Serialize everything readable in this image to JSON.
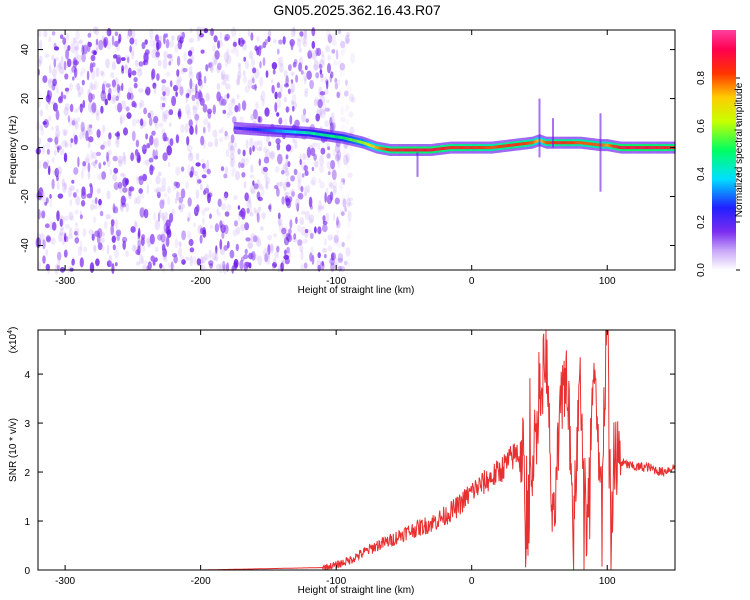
{
  "title": "GN05.2025.362.16.43.R07",
  "colors": {
    "snr_line": "#e83030",
    "spec_purple": "#7a2cf0",
    "frame": "#000000"
  },
  "chart_data": [
    {
      "type": "heatmap",
      "name": "spectrogram",
      "xlabel": "Height of straight line (km)",
      "ylabel": "Frequency (Hz)",
      "xlim": [
        -320,
        150
      ],
      "ylim": [
        -50,
        48
      ],
      "x_ticks": [
        -300,
        -200,
        -100,
        0,
        100
      ],
      "x_tick_labels": [
        "-300",
        "-200",
        "-100",
        "0",
        "100"
      ],
      "y_ticks": [
        -40,
        -20,
        0,
        20,
        40
      ],
      "y_tick_labels": [
        "-40",
        "-20",
        "0",
        "20",
        "40"
      ],
      "noise_region_x": [
        -320,
        -110
      ],
      "trace": {
        "x": [
          -175,
          -150,
          -120,
          -95,
          -80,
          -70,
          -60,
          -45,
          -30,
          -15,
          0,
          15,
          30,
          45,
          50,
          55,
          65,
          80,
          95,
          100,
          110,
          130,
          150
        ],
        "freq": [
          8,
          7,
          6,
          4,
          2,
          0,
          -1,
          -1,
          -1,
          0,
          0,
          0,
          1,
          2,
          3,
          2,
          2,
          2,
          1,
          1,
          0,
          0,
          0
        ],
        "amplitude": [
          0.2,
          0.3,
          0.45,
          0.5,
          0.6,
          0.75,
          0.85,
          0.9,
          0.9,
          0.85,
          0.85,
          0.8,
          0.85,
          0.8,
          0.7,
          0.8,
          0.85,
          0.8,
          0.8,
          0.75,
          0.9,
          0.9,
          0.85
        ]
      },
      "colorbar": {
        "label": "Normalized spectral amplitude",
        "ticks": [
          0.0,
          0.2,
          0.4,
          0.6,
          0.8
        ],
        "tick_labels": [
          "0.0",
          "0.2",
          "0.4",
          "0.6",
          "0.8"
        ],
        "range": [
          0,
          1
        ]
      }
    },
    {
      "type": "line",
      "name": "snr",
      "xlabel": "Height of straight line (km)",
      "ylabel": "SNR (10 * v/v)",
      "exponent_label": "(x10",
      "exponent_power": "4",
      "exponent_close": ")",
      "xlim": [
        -320,
        150
      ],
      "ylim": [
        0,
        4.9
      ],
      "x_ticks": [
        -300,
        -200,
        -100,
        0,
        100
      ],
      "x_tick_labels": [
        "-300",
        "-200",
        "-100",
        "0",
        "100"
      ],
      "y_ticks": [
        0,
        1,
        2,
        3,
        4
      ],
      "y_tick_labels": [
        "0",
        "1",
        "2",
        "3",
        "4"
      ],
      "series": [
        {
          "name": "SNR",
          "x": [
            -320,
            -200,
            -110,
            -100,
            -90,
            -80,
            -70,
            -60,
            -50,
            -40,
            -30,
            -20,
            -10,
            0,
            10,
            20,
            30,
            38,
            40,
            45,
            55,
            60,
            65,
            70,
            75,
            80,
            85,
            90,
            95,
            100,
            103,
            105,
            110,
            120,
            130,
            140,
            150
          ],
          "y": [
            0.0,
            0.0,
            0.05,
            0.1,
            0.2,
            0.35,
            0.5,
            0.6,
            0.75,
            0.85,
            0.95,
            1.1,
            1.3,
            1.6,
            1.8,
            2.0,
            2.3,
            2.5,
            0.5,
            2.3,
            4.5,
            0.6,
            3.0,
            4.2,
            1.0,
            3.8,
            0.7,
            4.0,
            1.5,
            4.9,
            0.3,
            2.4,
            2.2,
            2.1,
            2.1,
            2.0,
            2.1
          ]
        }
      ]
    }
  ]
}
